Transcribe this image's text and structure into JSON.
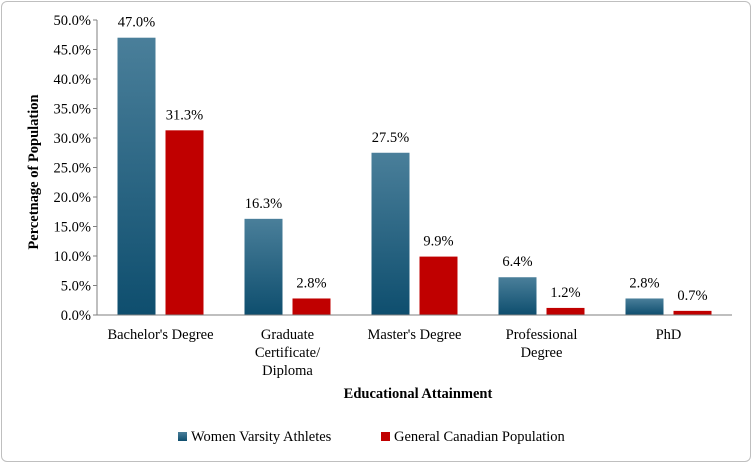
{
  "chart_data": {
    "type": "bar",
    "title": "",
    "xlabel": "Educational Attainment",
    "ylabel": "Percetnage of Population",
    "ylim": [
      0,
      50
    ],
    "yticks": [
      "0.0%",
      "5.0%",
      "10.0%",
      "15.0%",
      "20.0%",
      "25.0%",
      "30.0%",
      "35.0%",
      "40.0%",
      "45.0%",
      "50.0%"
    ],
    "categories": [
      [
        "Bachelor's Degree"
      ],
      [
        "Graduate",
        "Certificate/",
        "Diploma"
      ],
      [
        "Master's Degree"
      ],
      [
        "Professional",
        "Degree"
      ],
      [
        "PhD"
      ]
    ],
    "series": [
      {
        "name": "Women Varsity Athletes",
        "color": "#1f5c7a",
        "values": [
          47.0,
          16.3,
          27.5,
          6.4,
          2.8
        ],
        "labels": [
          "47.0%",
          "16.3%",
          "27.5%",
          "6.4%",
          "2.8%"
        ]
      },
      {
        "name": "General Canadian Population",
        "color": "#c00000",
        "values": [
          31.3,
          2.8,
          9.9,
          1.2,
          0.7
        ],
        "labels": [
          "31.3%",
          "2.8%",
          "9.9%",
          "1.2%",
          "0.7%"
        ]
      }
    ],
    "grid": false,
    "legend": "bottom"
  }
}
